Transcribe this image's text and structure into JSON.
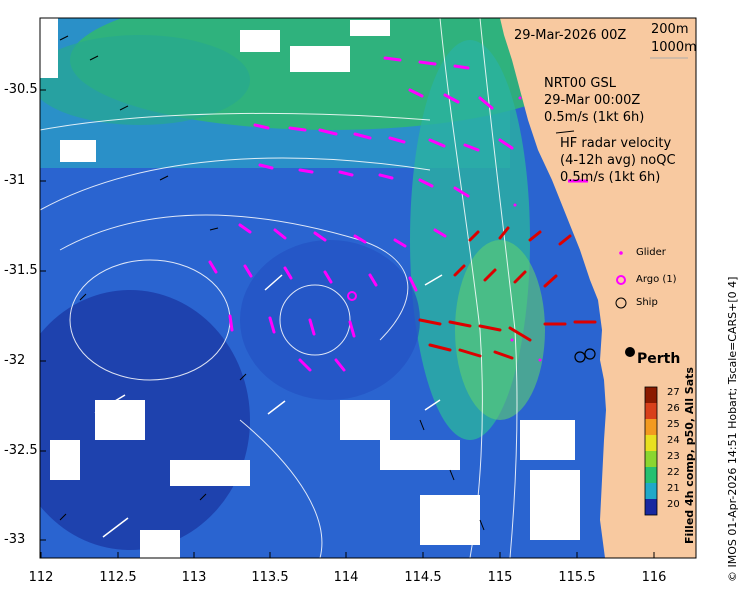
{
  "map": {
    "date_label": "29-Mar-2026 00Z",
    "bathy_labels": [
      "200m",
      "1000m"
    ],
    "gsl_block": [
      "NRT00 GSL",
      "29-Mar 00:00Z",
      "0.5m/s (1kt 6h)"
    ],
    "hf_block": [
      "HF radar velocity",
      "(4-12h avg) noQC",
      "0.5m/s (1kt 6h)"
    ],
    "legend": {
      "glider": "Glider",
      "argo": "Argo (1)",
      "ship": "Ship"
    },
    "city": "Perth",
    "colorbar_title": "Filled 4h comp, p50, All Sats",
    "colorbar_ticks": [
      "27",
      "26",
      "25",
      "24",
      "23",
      "22",
      "21",
      "20"
    ],
    "credit": "© IMOS 01-Apr-2026 14:51 Hobart; Tscale=CARS+[0 4]",
    "x_ticks": [
      "112",
      "112.5",
      "113",
      "113.5",
      "114",
      "114.5",
      "115",
      "115.5",
      "116"
    ],
    "y_ticks": [
      "-30.5",
      "-31",
      "-31.5",
      "-32",
      "-32.5",
      "-33"
    ],
    "colors": {
      "land": "#f8c9a0",
      "gsl_arrow": "#ff00ff",
      "hf_arrow": "#dd0000"
    },
    "colorbar_colors": [
      "#8b1a00",
      "#d8401a",
      "#f29a20",
      "#e8e020",
      "#8ad630",
      "#26c070",
      "#20a8c8",
      "#2060d0",
      "#1828a0"
    ]
  }
}
